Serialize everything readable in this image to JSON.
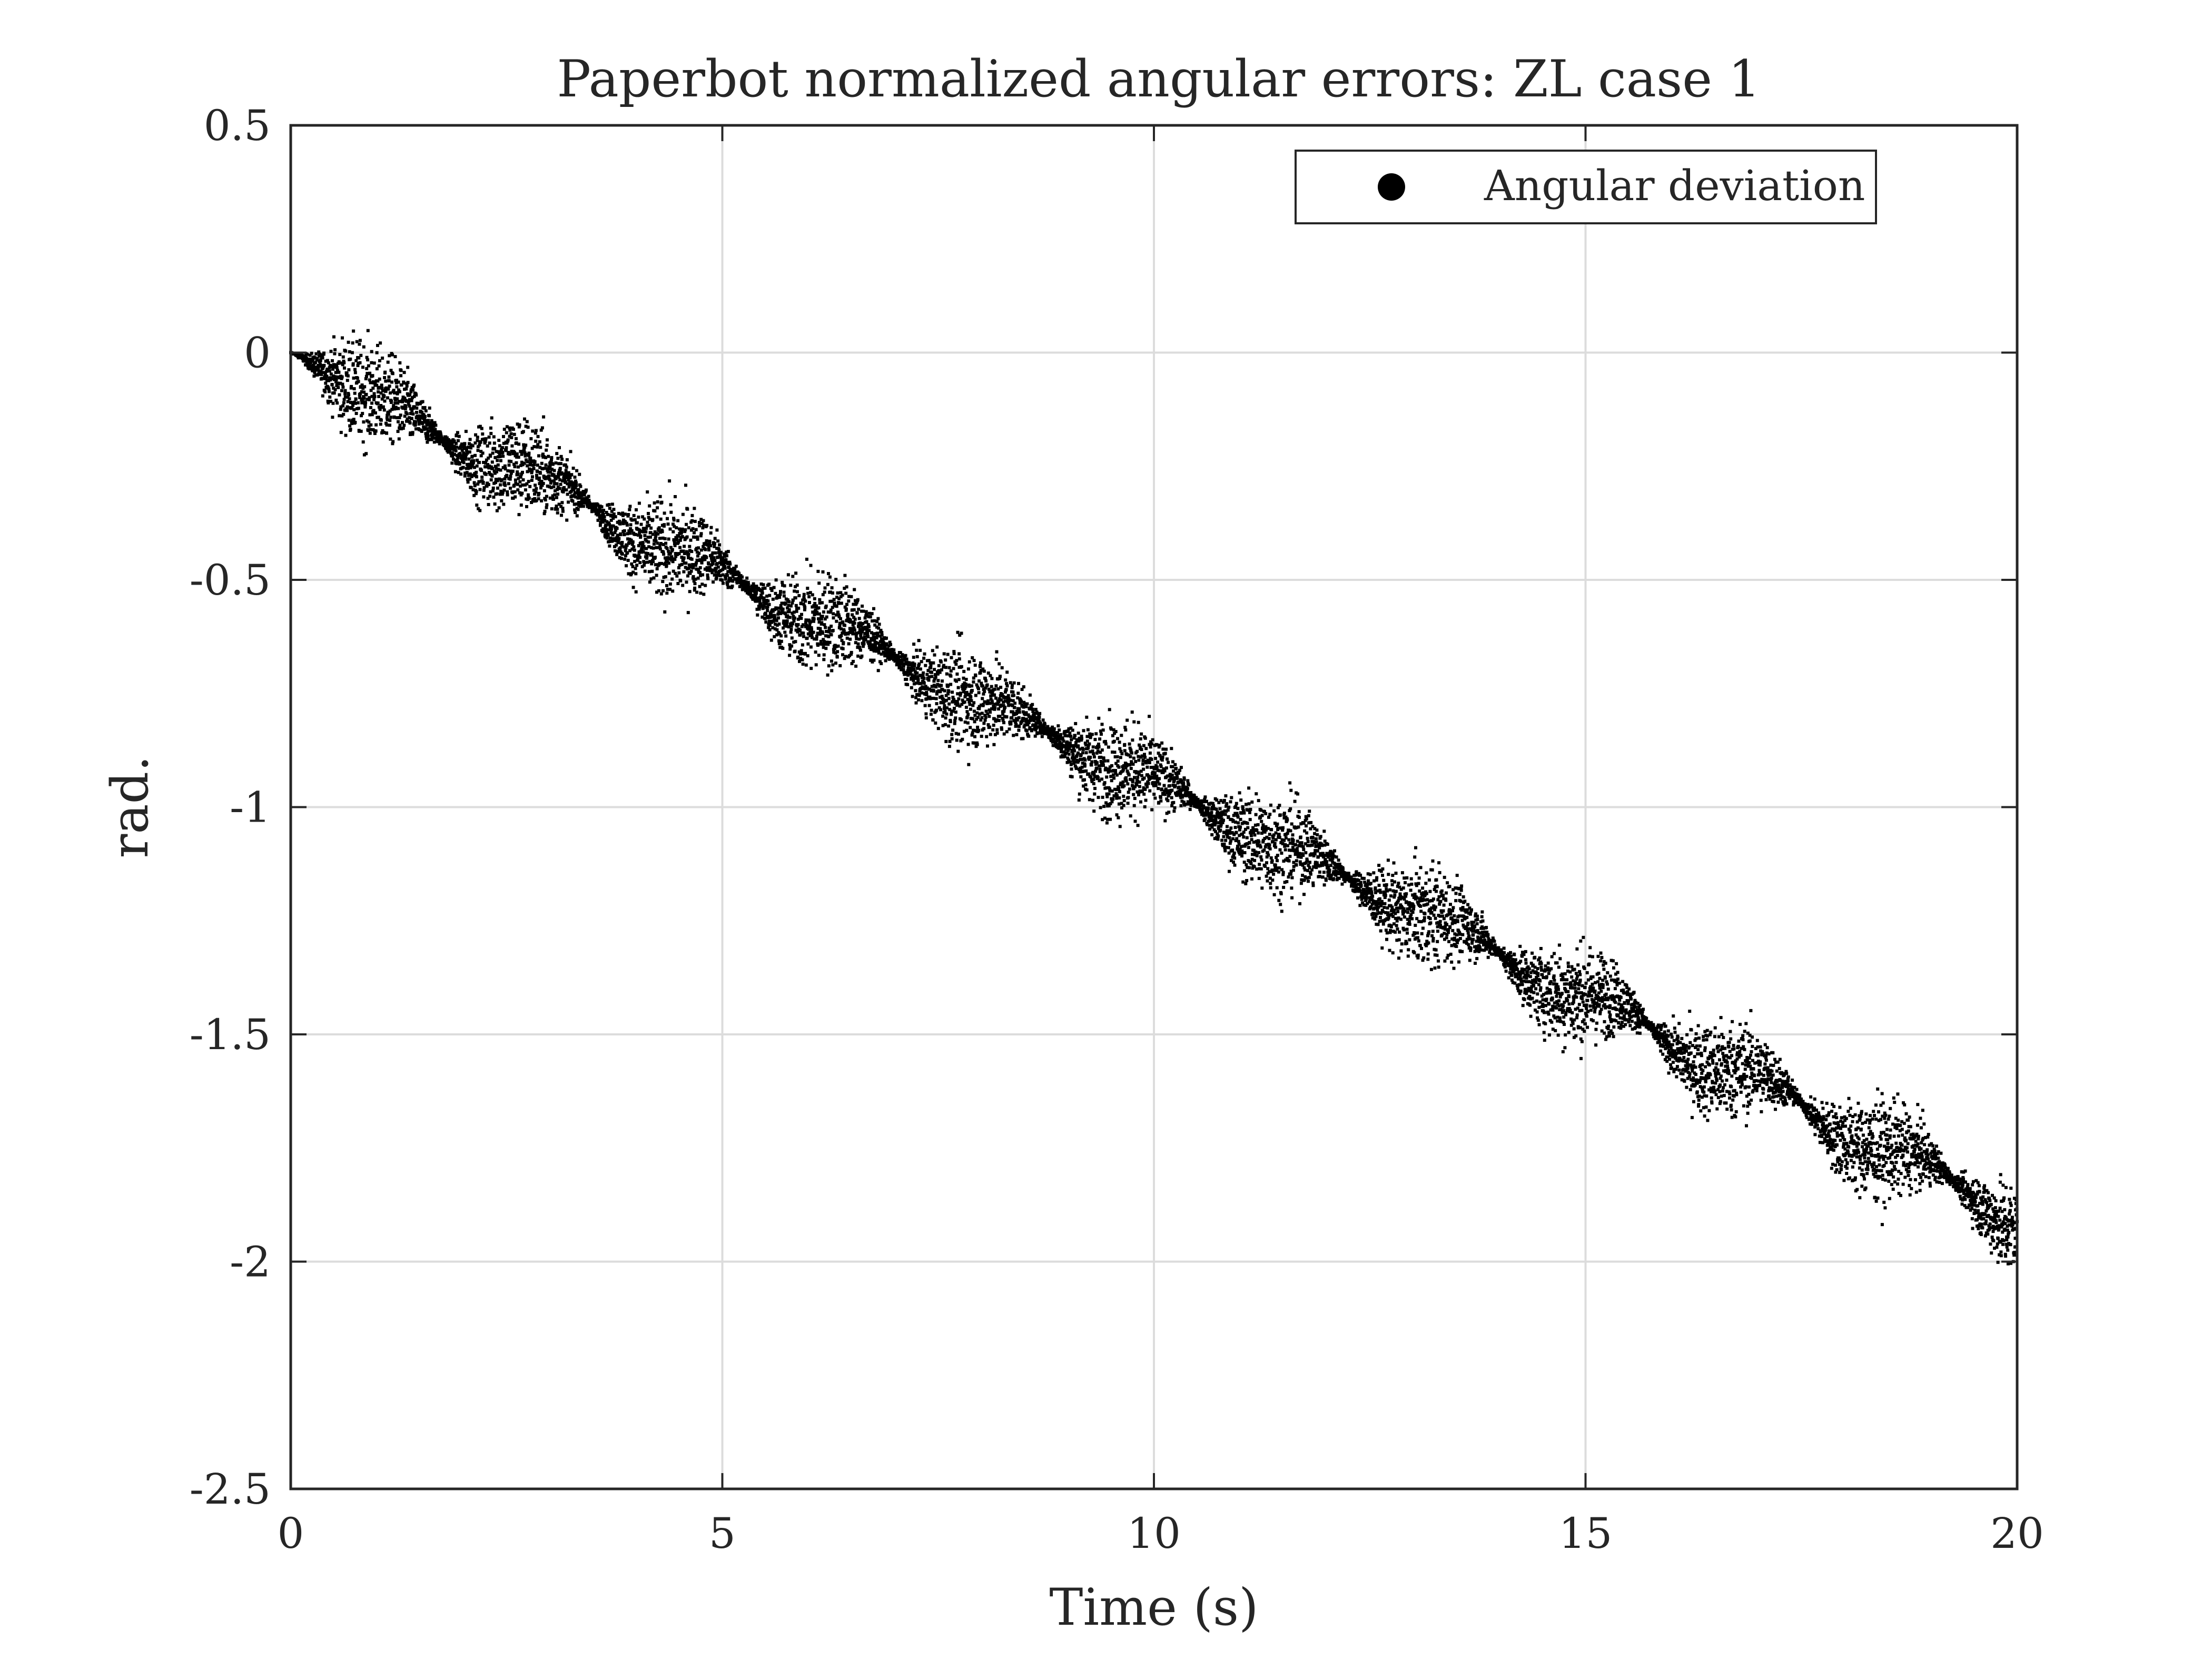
{
  "chart_data": {
    "type": "scatter",
    "title": "Paperbot normalized angular errors: ZL case 1",
    "xlabel": "Time (s)",
    "ylabel": "rad.",
    "xlim": [
      0,
      20
    ],
    "ylim": [
      -2.5,
      0.5
    ],
    "xticks": [
      0,
      5,
      10,
      15,
      20
    ],
    "xtick_labels": [
      "0",
      "5",
      "10",
      "15",
      "20"
    ],
    "yticks": [
      0.5,
      0,
      -0.5,
      -1,
      -1.5,
      -2,
      -2.5
    ],
    "ytick_labels": [
      "0.5",
      "0",
      "-0.5",
      "-1",
      "-1.5",
      "-2",
      "-2.5"
    ],
    "grid": true,
    "legend": {
      "position": "top-right",
      "entries": [
        "Angular deviation"
      ]
    },
    "series": [
      {
        "name": "Angular deviation",
        "color": "#000000",
        "marker": "dot",
        "trend": {
          "x": [
            0,
            20
          ],
          "y": [
            0,
            -1.9
          ]
        },
        "oscillation_period_s": 1.75,
        "max_spread_rad": 0.12,
        "samples": [
          [
            0,
            0
          ],
          [
            0.5,
            -0.03
          ],
          [
            1,
            -0.11
          ],
          [
            1.5,
            -0.17
          ],
          [
            2,
            -0.21
          ],
          [
            2.5,
            -0.23
          ],
          [
            3,
            -0.3
          ],
          [
            3.5,
            -0.34
          ],
          [
            4,
            -0.39
          ],
          [
            4.5,
            -0.45
          ],
          [
            5,
            -0.49
          ],
          [
            5.5,
            -0.53
          ],
          [
            6,
            -0.58
          ],
          [
            6.5,
            -0.63
          ],
          [
            7,
            -0.67
          ],
          [
            7.5,
            -0.71
          ],
          [
            8,
            -0.78
          ],
          [
            8.5,
            -0.82
          ],
          [
            9,
            -0.84
          ],
          [
            9.5,
            -0.9
          ],
          [
            10,
            -0.96
          ],
          [
            10.5,
            -0.99
          ],
          [
            11,
            -1.03
          ],
          [
            11.5,
            -1.1
          ],
          [
            12,
            -1.14
          ],
          [
            12.5,
            -1.17
          ],
          [
            13,
            -1.22
          ],
          [
            13.5,
            -1.28
          ],
          [
            14,
            -1.32
          ],
          [
            14.5,
            -1.37
          ],
          [
            15,
            -1.43
          ],
          [
            15.5,
            -1.46
          ],
          [
            16,
            -1.51
          ],
          [
            16.5,
            -1.57
          ],
          [
            17,
            -1.61
          ],
          [
            17.5,
            -1.65
          ],
          [
            18,
            -1.71
          ],
          [
            18.5,
            -1.77
          ],
          [
            19,
            -1.8
          ],
          [
            19.5,
            -1.84
          ],
          [
            20,
            -1.92
          ]
        ]
      }
    ]
  }
}
